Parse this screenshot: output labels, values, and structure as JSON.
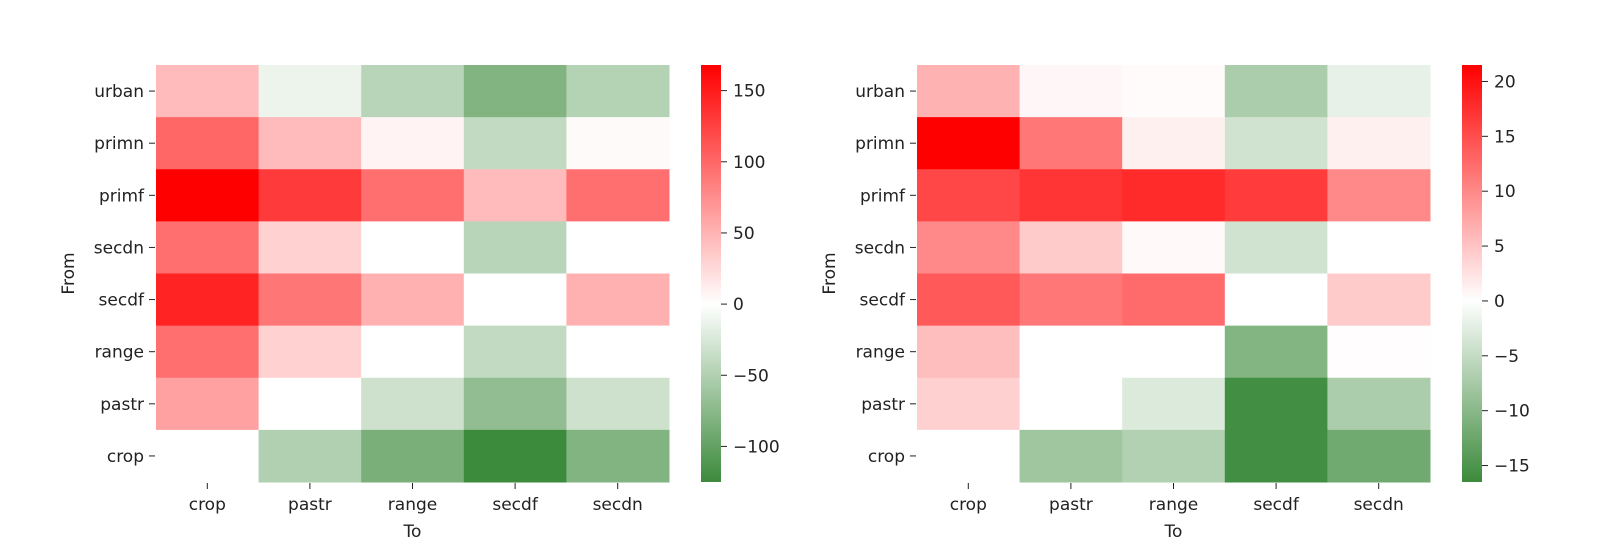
{
  "chart_data": [
    {
      "type": "heatmap",
      "title": "",
      "xlabel": "To",
      "ylabel": "From",
      "x_categories": [
        "crop",
        "pastr",
        "range",
        "secdf",
        "secdn"
      ],
      "y_categories": [
        "urban",
        "primn",
        "primf",
        "secdn",
        "secdf",
        "range",
        "pastr",
        "crop"
      ],
      "values": [
        [
          45,
          -12,
          -45,
          -80,
          -48
        ],
        [
          100,
          45,
          8,
          -40,
          3
        ],
        [
          168,
          130,
          95,
          45,
          95
        ],
        [
          95,
          30,
          0,
          -45,
          0
        ],
        [
          145,
          90,
          52,
          0,
          52
        ],
        [
          95,
          30,
          0,
          -40,
          0
        ],
        [
          62,
          0,
          -32,
          -70,
          -32
        ],
        [
          0,
          -50,
          -85,
          -125,
          -80
        ]
      ],
      "colorbar": {
        "vmin": -125,
        "vmax": 168,
        "ticks": [
          150,
          100,
          50,
          0,
          -50,
          -100
        ],
        "tick_labels": [
          "150",
          "100",
          "50",
          "0",
          "−50",
          "−100"
        ]
      },
      "colormap": {
        "negative": "#3c8a3c",
        "zero": "#ffffff",
        "positive": "#ff0000"
      },
      "grid": false
    },
    {
      "type": "heatmap",
      "title": "",
      "xlabel": "To",
      "ylabel": "From",
      "x_categories": [
        "crop",
        "pastr",
        "range",
        "secdf",
        "secdn"
      ],
      "y_categories": [
        "urban",
        "primn",
        "primf",
        "secdn",
        "secdf",
        "range",
        "pastr",
        "crop"
      ],
      "values": [
        [
          6.5,
          0.7,
          0.3,
          -7,
          -2
        ],
        [
          21.5,
          11.5,
          1.3,
          -4,
          1.3
        ],
        [
          15.5,
          17,
          18,
          16.5,
          10
        ],
        [
          10,
          4.5,
          0.5,
          -4,
          0
        ],
        [
          14,
          11.5,
          12.5,
          0,
          4.5
        ],
        [
          5.5,
          0,
          0,
          -10.5,
          0.2
        ],
        [
          4,
          0,
          -3,
          -16,
          -7
        ],
        [
          0,
          -8,
          -6.5,
          -16,
          -12
        ]
      ],
      "colorbar": {
        "vmin": -16.5,
        "vmax": 21.5,
        "ticks": [
          20,
          15,
          10,
          5,
          0,
          -5,
          -10,
          -15
        ],
        "tick_labels": [
          "20",
          "15",
          "10",
          "5",
          "0",
          "−5",
          "−10",
          "−15"
        ]
      },
      "colormap": {
        "negative": "#3c8a3c",
        "zero": "#ffffff",
        "positive": "#ff0000"
      },
      "grid": false
    }
  ]
}
